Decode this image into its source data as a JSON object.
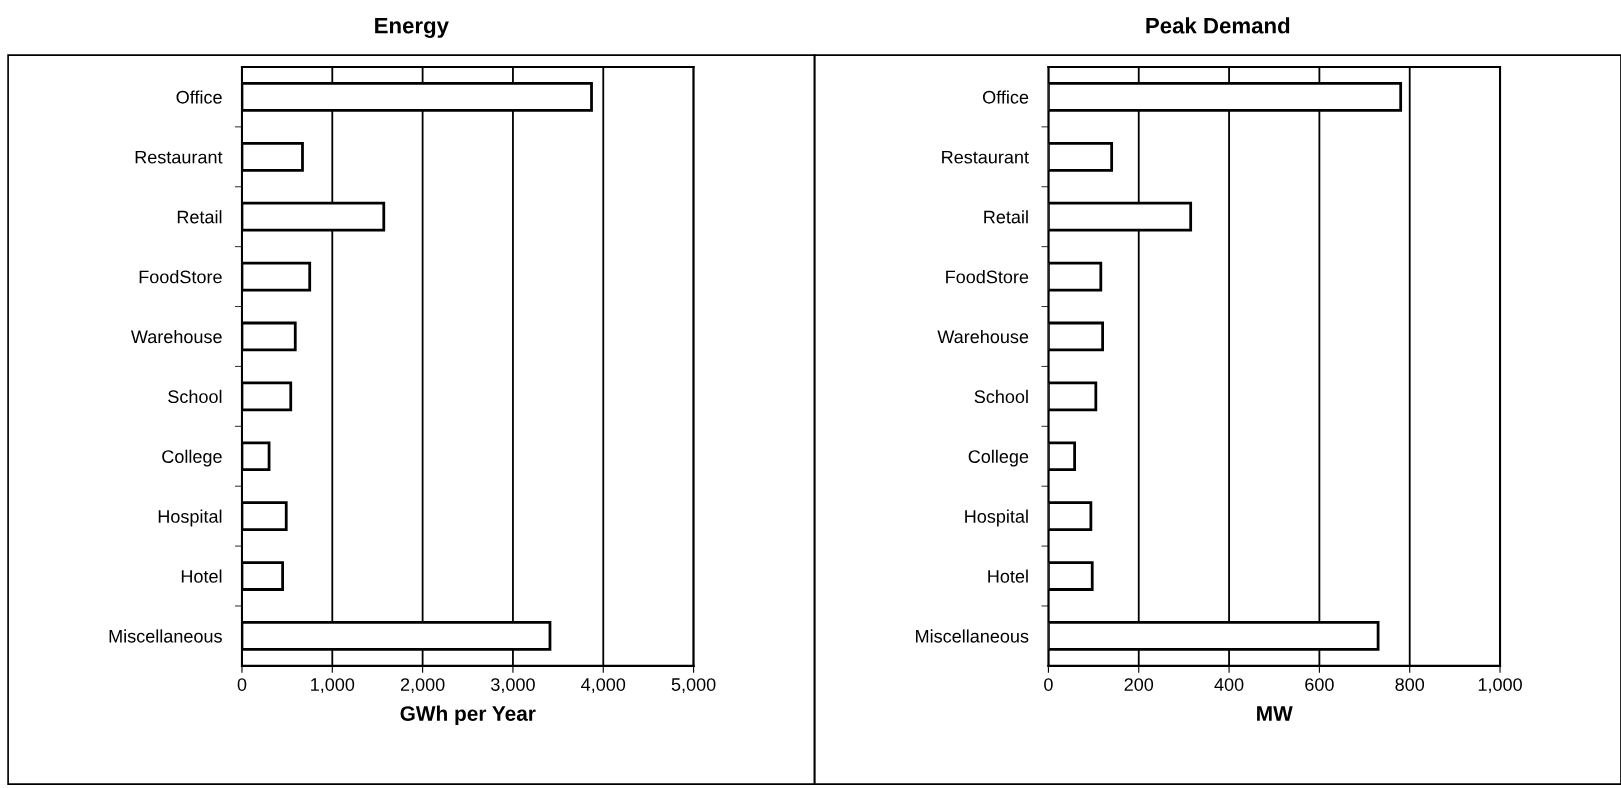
{
  "chart_data": [
    {
      "type": "bar",
      "orientation": "horizontal",
      "title": "Energy",
      "xlabel": "GWh per Year",
      "categories": [
        "Office",
        "Restaurant",
        "Retail",
        "FoodStore",
        "Warehouse",
        "School",
        "College",
        "Hospital",
        "Hotel",
        "Miscellaneous"
      ],
      "values": [
        3870,
        670,
        1570,
        750,
        590,
        540,
        300,
        490,
        450,
        3410
      ],
      "color": "#ffffff",
      "xlim": [
        0,
        5000
      ],
      "xticks": [
        0,
        {
          "value": 1000,
          "label": "1,000"
        },
        {
          "value": 2000,
          "label": "2,000"
        },
        {
          "value": 3000,
          "label": "3,000"
        },
        {
          "value": 4000,
          "label": "4,000"
        },
        {
          "value": 5000,
          "label": "5,000"
        }
      ],
      "grid": "x",
      "legend": false
    },
    {
      "type": "bar",
      "orientation": "horizontal",
      "title": "Peak Demand",
      "xlabel": "MW",
      "categories": [
        "Office",
        "Restaurant",
        "Retail",
        "FoodStore",
        "Warehouse",
        "School",
        "College",
        "Hospital",
        "Hotel",
        "Miscellaneous"
      ],
      "values": [
        780,
        140,
        315,
        116,
        120,
        105,
        58,
        94,
        97,
        730
      ],
      "color": "#ffffff",
      "xlim": [
        0,
        1000
      ],
      "xticks": [
        0,
        200,
        400,
        600,
        800,
        {
          "value": 1000,
          "label": "1,000"
        }
      ],
      "grid": "x",
      "legend": false
    }
  ]
}
